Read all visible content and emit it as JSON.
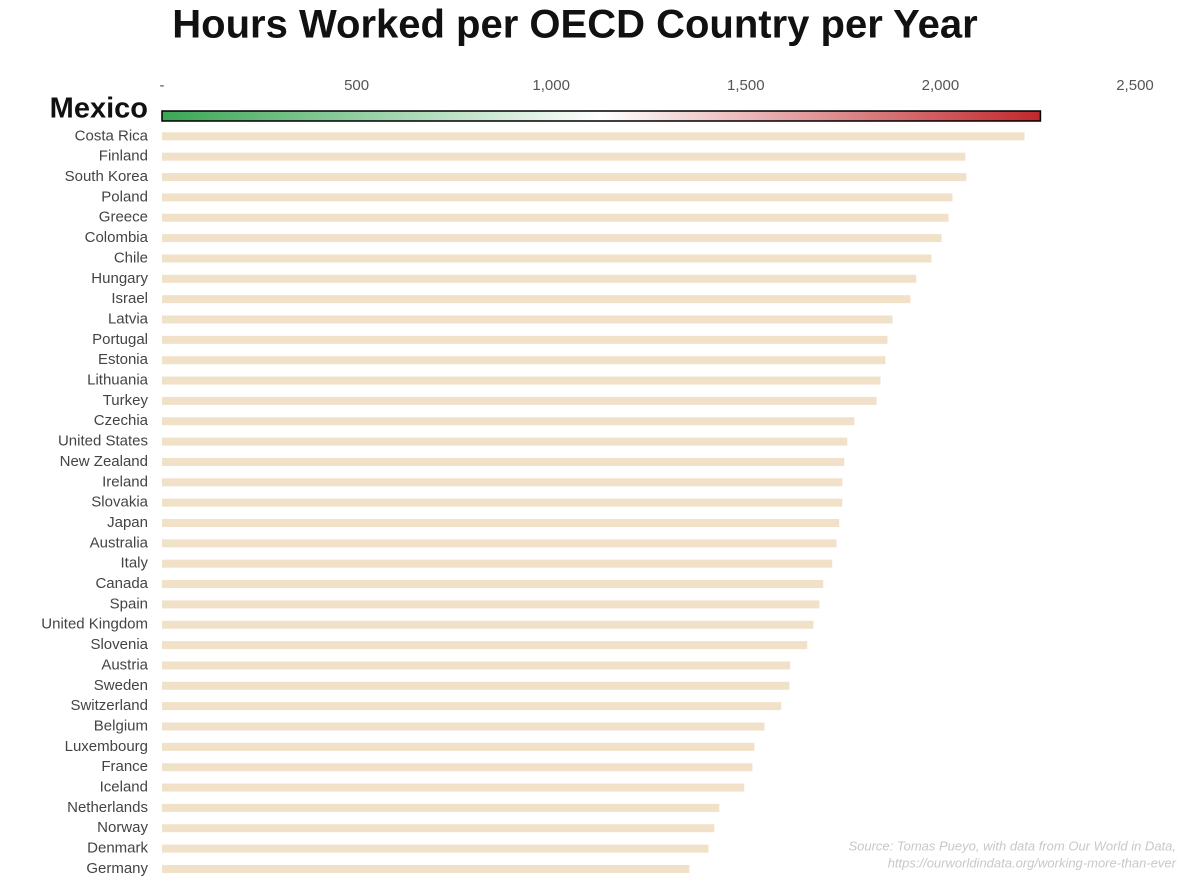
{
  "chart_data": {
    "type": "bar",
    "orientation": "horizontal",
    "title": "Hours Worked per OECD Country per Year",
    "categories": [
      "Mexico",
      "Costa Rica",
      "Finland",
      "South Korea",
      "Poland",
      "Greece",
      "Colombia",
      "Chile",
      "Hungary",
      "Israel",
      "Latvia",
      "Portugal",
      "Estonia",
      "Lithuania",
      "Turkey",
      "Czechia",
      "United States",
      "New Zealand",
      "Ireland",
      "Slovakia",
      "Japan",
      "Australia",
      "Italy",
      "Canada",
      "Spain",
      "United Kingdom",
      "Slovenia",
      "Austria",
      "Sweden",
      "Switzerland",
      "Belgium",
      "Luxembourg",
      "France",
      "Iceland",
      "Netherlands",
      "Norway",
      "Denmark",
      "Germany"
    ],
    "values": [
      2257,
      2216,
      2064,
      2067,
      2031,
      2021,
      2003,
      1977,
      1938,
      1923,
      1877,
      1864,
      1859,
      1846,
      1836,
      1779,
      1761,
      1753,
      1748,
      1748,
      1740,
      1733,
      1722,
      1699,
      1689,
      1674,
      1658,
      1614,
      1612,
      1591,
      1548,
      1522,
      1517,
      1496,
      1432,
      1419,
      1404,
      1355
    ],
    "color": "#f1e1c9",
    "highlight": 0,
    "highlight_colors": [
      "#3aa655",
      "#ffffff",
      "#c0282d"
    ],
    "xlim": [
      0,
      2500
    ],
    "xticks": [
      {
        "value": 0,
        "label": "-"
      },
      500,
      {
        "value": 1000,
        "label": "1,000"
      },
      {
        "value": 1500,
        "label": "1,500"
      },
      {
        "value": 2000,
        "label": "2,000"
      },
      {
        "value": 2500,
        "label": "2,500"
      }
    ],
    "grid": false,
    "source": "Source: Tomas Pueyo, with data from Our World in Data,",
    "source_url": "https://ourworldindata.org/working-more-than-ever"
  }
}
